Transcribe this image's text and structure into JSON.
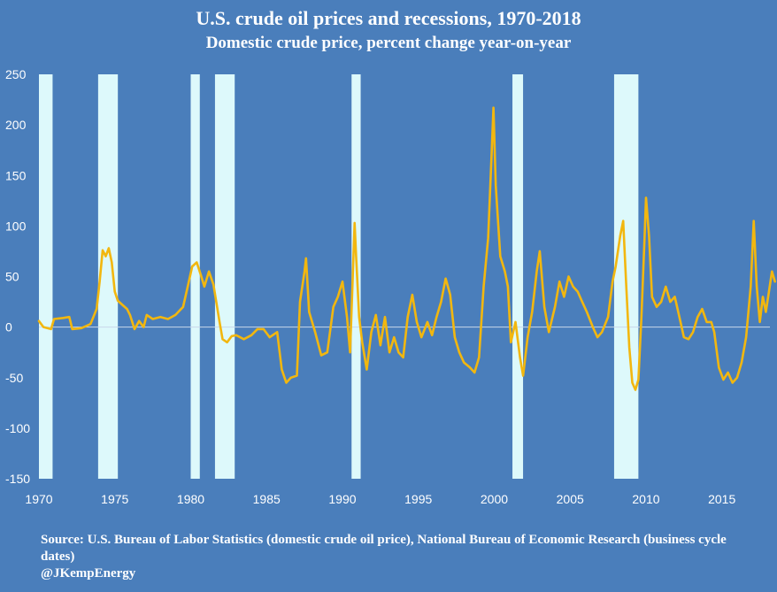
{
  "title": "U.S. crude oil prices and recessions, 1970-2018",
  "subtitle": "Domestic crude price, percent change year-on-year",
  "source_line": "Source: U.S. Bureau of Labor Statistics (domestic crude oil price), National Bureau of Economic Research (business cycle dates)",
  "credit": "@JKempEnergy",
  "colors": {
    "background": "#4a7ebb",
    "line": "#f2b70f",
    "recession_band": "#ddf9fb",
    "zero_line": "#c8d8ea",
    "text": "#ffffff"
  },
  "chart_data": {
    "type": "line",
    "title": "U.S. crude oil prices and recessions, 1970-2018",
    "subtitle": "Domestic crude price, percent change year-on-year",
    "xlabel": "",
    "ylabel": "",
    "xlim": [
      1970,
      2018.6
    ],
    "ylim": [
      -150,
      250
    ],
    "x_ticks": [
      1970,
      1975,
      1980,
      1985,
      1990,
      1995,
      2000,
      2005,
      2010,
      2015
    ],
    "y_ticks": [
      250,
      200,
      150,
      100,
      50,
      0,
      -50,
      -100,
      -150
    ],
    "grid": false,
    "legend": "none",
    "recessions": [
      {
        "start": 1970.0,
        "end": 1970.9
      },
      {
        "start": 1973.9,
        "end": 1975.2
      },
      {
        "start": 1980.0,
        "end": 1980.6
      },
      {
        "start": 1981.6,
        "end": 1982.9
      },
      {
        "start": 1990.6,
        "end": 1991.2
      },
      {
        "start": 2001.2,
        "end": 2001.9
      },
      {
        "start": 2007.9,
        "end": 2009.5
      }
    ],
    "series": [
      {
        "values": [
          [
            1970.0,
            6
          ],
          [
            1970.3,
            0
          ],
          [
            1970.8,
            -2
          ],
          [
            1971.0,
            8
          ],
          [
            1971.6,
            9
          ],
          [
            1972.0,
            10
          ],
          [
            1972.2,
            -2
          ],
          [
            1972.8,
            -1
          ],
          [
            1973.4,
            3
          ],
          [
            1973.8,
            18
          ],
          [
            1974.0,
            45
          ],
          [
            1974.2,
            76
          ],
          [
            1974.4,
            70
          ],
          [
            1974.6,
            78
          ],
          [
            1974.8,
            64
          ],
          [
            1975.0,
            35
          ],
          [
            1975.2,
            26
          ],
          [
            1975.5,
            22
          ],
          [
            1975.8,
            18
          ],
          [
            1976.0,
            12
          ],
          [
            1976.3,
            -2
          ],
          [
            1976.6,
            6
          ],
          [
            1976.9,
            0
          ],
          [
            1977.1,
            12
          ],
          [
            1977.5,
            8
          ],
          [
            1978.0,
            10
          ],
          [
            1978.5,
            8
          ],
          [
            1979.0,
            12
          ],
          [
            1979.5,
            20
          ],
          [
            1979.8,
            40
          ],
          [
            1980.1,
            60
          ],
          [
            1980.4,
            64
          ],
          [
            1980.7,
            50
          ],
          [
            1980.9,
            40
          ],
          [
            1981.2,
            55
          ],
          [
            1981.5,
            42
          ],
          [
            1981.9,
            5
          ],
          [
            1982.1,
            -12
          ],
          [
            1982.4,
            -15
          ],
          [
            1982.7,
            -9
          ],
          [
            1983.0,
            -8
          ],
          [
            1983.5,
            -12
          ],
          [
            1984.0,
            -8
          ],
          [
            1984.4,
            -2
          ],
          [
            1984.8,
            -2
          ],
          [
            1985.2,
            -10
          ],
          [
            1985.7,
            -5
          ],
          [
            1986.0,
            -42
          ],
          [
            1986.3,
            -55
          ],
          [
            1986.6,
            -50
          ],
          [
            1987.0,
            -48
          ],
          [
            1987.2,
            25
          ],
          [
            1987.5,
            55
          ],
          [
            1987.6,
            68
          ],
          [
            1987.8,
            15
          ],
          [
            1988.2,
            -5
          ],
          [
            1988.6,
            -28
          ],
          [
            1989.0,
            -25
          ],
          [
            1989.4,
            20
          ],
          [
            1989.7,
            30
          ],
          [
            1990.0,
            45
          ],
          [
            1990.3,
            10
          ],
          [
            1990.5,
            -25
          ],
          [
            1990.7,
            60
          ],
          [
            1990.8,
            103
          ],
          [
            1990.9,
            70
          ],
          [
            1991.1,
            10
          ],
          [
            1991.3,
            -15
          ],
          [
            1991.6,
            -42
          ],
          [
            1991.9,
            -5
          ],
          [
            1992.2,
            12
          ],
          [
            1992.5,
            -18
          ],
          [
            1992.8,
            10
          ],
          [
            1993.1,
            -25
          ],
          [
            1993.4,
            -10
          ],
          [
            1993.7,
            -25
          ],
          [
            1994.0,
            -30
          ],
          [
            1994.3,
            10
          ],
          [
            1994.6,
            32
          ],
          [
            1994.9,
            5
          ],
          [
            1995.2,
            -10
          ],
          [
            1995.6,
            5
          ],
          [
            1995.9,
            -8
          ],
          [
            1996.2,
            10
          ],
          [
            1996.5,
            25
          ],
          [
            1996.8,
            48
          ],
          [
            1997.1,
            32
          ],
          [
            1997.4,
            -10
          ],
          [
            1997.7,
            -25
          ],
          [
            1998.0,
            -35
          ],
          [
            1998.4,
            -40
          ],
          [
            1998.7,
            -45
          ],
          [
            1999.0,
            -30
          ],
          [
            1999.3,
            40
          ],
          [
            1999.6,
            88
          ],
          [
            1999.8,
            160
          ],
          [
            1999.95,
            217
          ],
          [
            2000.1,
            140
          ],
          [
            2000.4,
            70
          ],
          [
            2000.7,
            55
          ],
          [
            2000.9,
            40
          ],
          [
            2001.1,
            -15
          ],
          [
            2001.4,
            5
          ],
          [
            2001.7,
            -30
          ],
          [
            2001.9,
            -48
          ],
          [
            2002.2,
            -10
          ],
          [
            2002.5,
            15
          ],
          [
            2002.8,
            55
          ],
          [
            2003.0,
            75
          ],
          [
            2003.3,
            20
          ],
          [
            2003.6,
            -5
          ],
          [
            2004.0,
            20
          ],
          [
            2004.3,
            45
          ],
          [
            2004.6,
            30
          ],
          [
            2004.9,
            50
          ],
          [
            2005.2,
            40
          ],
          [
            2005.5,
            35
          ],
          [
            2005.8,
            25
          ],
          [
            2006.1,
            15
          ],
          [
            2006.5,
            0
          ],
          [
            2006.8,
            -10
          ],
          [
            2007.1,
            -5
          ],
          [
            2007.5,
            10
          ],
          [
            2007.8,
            45
          ],
          [
            2008.0,
            60
          ],
          [
            2008.3,
            90
          ],
          [
            2008.5,
            105
          ],
          [
            2008.7,
            40
          ],
          [
            2008.9,
            -20
          ],
          [
            2009.1,
            -55
          ],
          [
            2009.3,
            -62
          ],
          [
            2009.5,
            -52
          ],
          [
            2009.7,
            10
          ],
          [
            2009.9,
            85
          ],
          [
            2010.0,
            128
          ],
          [
            2010.2,
            90
          ],
          [
            2010.4,
            30
          ],
          [
            2010.7,
            20
          ],
          [
            2011.0,
            25
          ],
          [
            2011.3,
            40
          ],
          [
            2011.6,
            25
          ],
          [
            2011.9,
            30
          ],
          [
            2012.2,
            10
          ],
          [
            2012.5,
            -10
          ],
          [
            2012.8,
            -12
          ],
          [
            2013.1,
            -5
          ],
          [
            2013.4,
            10
          ],
          [
            2013.7,
            18
          ],
          [
            2014.0,
            5
          ],
          [
            2014.3,
            5
          ],
          [
            2014.5,
            -5
          ],
          [
            2014.8,
            -40
          ],
          [
            2015.1,
            -52
          ],
          [
            2015.4,
            -45
          ],
          [
            2015.7,
            -55
          ],
          [
            2016.0,
            -50
          ],
          [
            2016.3,
            -35
          ],
          [
            2016.6,
            -10
          ],
          [
            2016.9,
            40
          ],
          [
            2017.1,
            105
          ],
          [
            2017.3,
            40
          ],
          [
            2017.5,
            5
          ],
          [
            2017.7,
            30
          ],
          [
            2017.9,
            15
          ],
          [
            2018.1,
            35
          ],
          [
            2018.3,
            55
          ],
          [
            2018.5,
            45
          ]
        ]
      }
    ]
  }
}
